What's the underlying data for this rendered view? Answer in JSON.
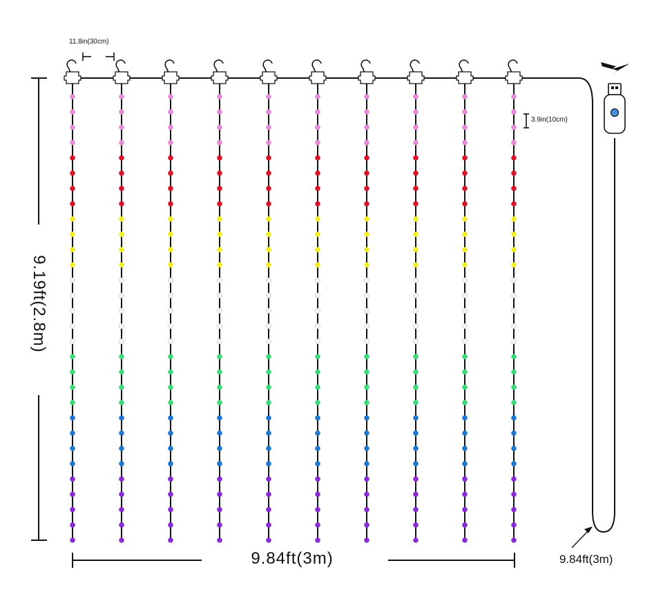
{
  "labels": {
    "strand_spacing": "11.8in(30cm)",
    "led_spacing": "3.9in(10cm)",
    "height": "9.19ft(2.8m)",
    "width": "9.84ft(3m)",
    "cable_length": "9.84ft(3m)"
  },
  "curtain": {
    "strand_count": 10,
    "led_color_groups": [
      {
        "color": "#e58ad6",
        "count": 4
      },
      {
        "color": "#d9152a",
        "count": 4
      },
      {
        "color": "#f2ee2a",
        "count": 4
      },
      {
        "color": "#f4f4f4",
        "count": 5
      },
      {
        "color": "#3fd97b",
        "count": 4
      },
      {
        "color": "#1f77d0",
        "count": 4
      },
      {
        "color": "#8a2bd6",
        "count": 5
      }
    ]
  },
  "icons": [
    "hook-icon",
    "lightning-bolt-icon",
    "usb-plug-icon"
  ],
  "colors": {
    "wire": "#111111",
    "usb_button": "#4a90e2"
  }
}
